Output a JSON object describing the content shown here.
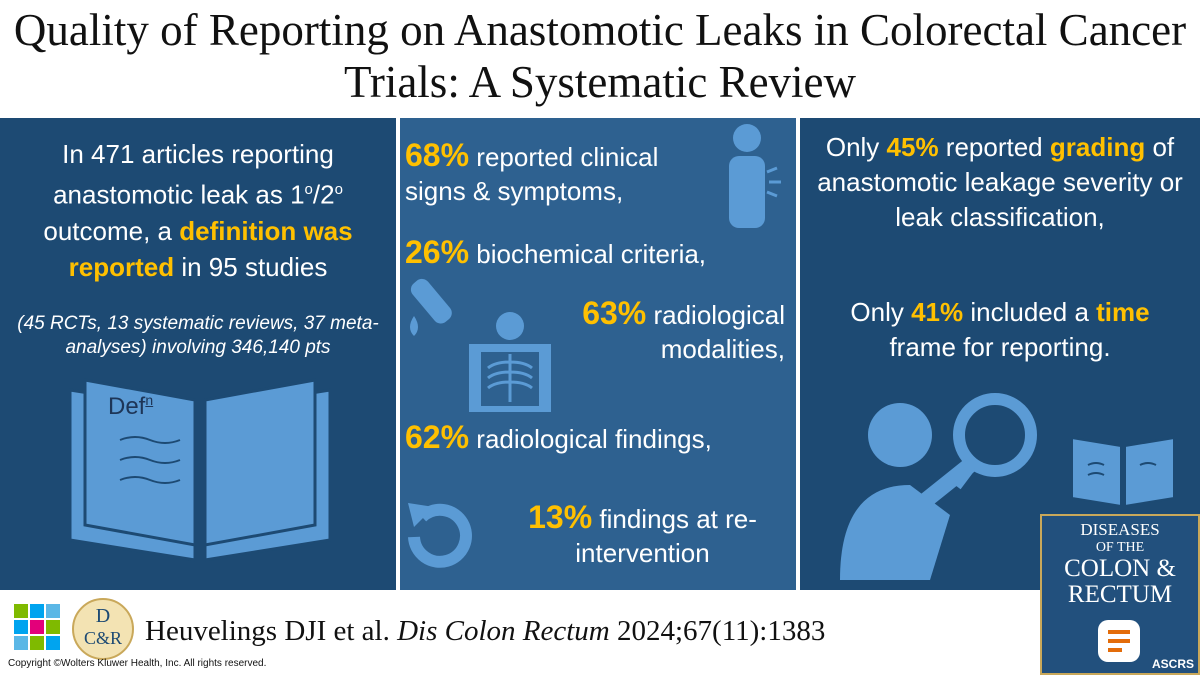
{
  "header": {
    "title": "Quality of Reporting on Anastomotic Leaks in Colorectal Cancer Trials: A Systematic Review"
  },
  "left": {
    "text": [
      "In 471 articles reporting anastomotic leak as 1",
      "o",
      "/2",
      "o",
      " outcome, a ",
      "definition was reported",
      " in 95 studies"
    ],
    "details": "(45 RCTs, 13 systematic reviews, 37 meta-analyses) involving 346,140 pts",
    "book_label": [
      "Def",
      "n"
    ]
  },
  "middle": {
    "items": [
      {
        "percent": "68%",
        "text": "reported clinical signs & symptoms,"
      },
      {
        "percent": "26%",
        "text": "biochemical criteria,"
      },
      {
        "percent": "63%",
        "text": "radiological modalities,"
      },
      {
        "percent": "62%",
        "text": "radiological findings,"
      },
      {
        "percent": "13%",
        "text": "findings at re-intervention"
      }
    ]
  },
  "right": {
    "grading": [
      "Only ",
      "45%",
      " reported ",
      "grading",
      " of anastomotic leakage severity or leak classification,"
    ],
    "time": [
      "Only ",
      "41%",
      " included a ",
      "time",
      " frame for reporting."
    ]
  },
  "footer": {
    "citation": [
      "Heuvelings DJI et al. ",
      "Dis Colon Rectum",
      " 2024;67(11):1383"
    ],
    "copyright": "Copyright ©Wolters Kluwer Health, Inc. All rights reserved.",
    "logo": [
      "D",
      "C&R"
    ],
    "journal": [
      "DISEASES",
      "OF THE",
      "COLON &",
      "RECTUM",
      "ASCRS"
    ]
  }
}
